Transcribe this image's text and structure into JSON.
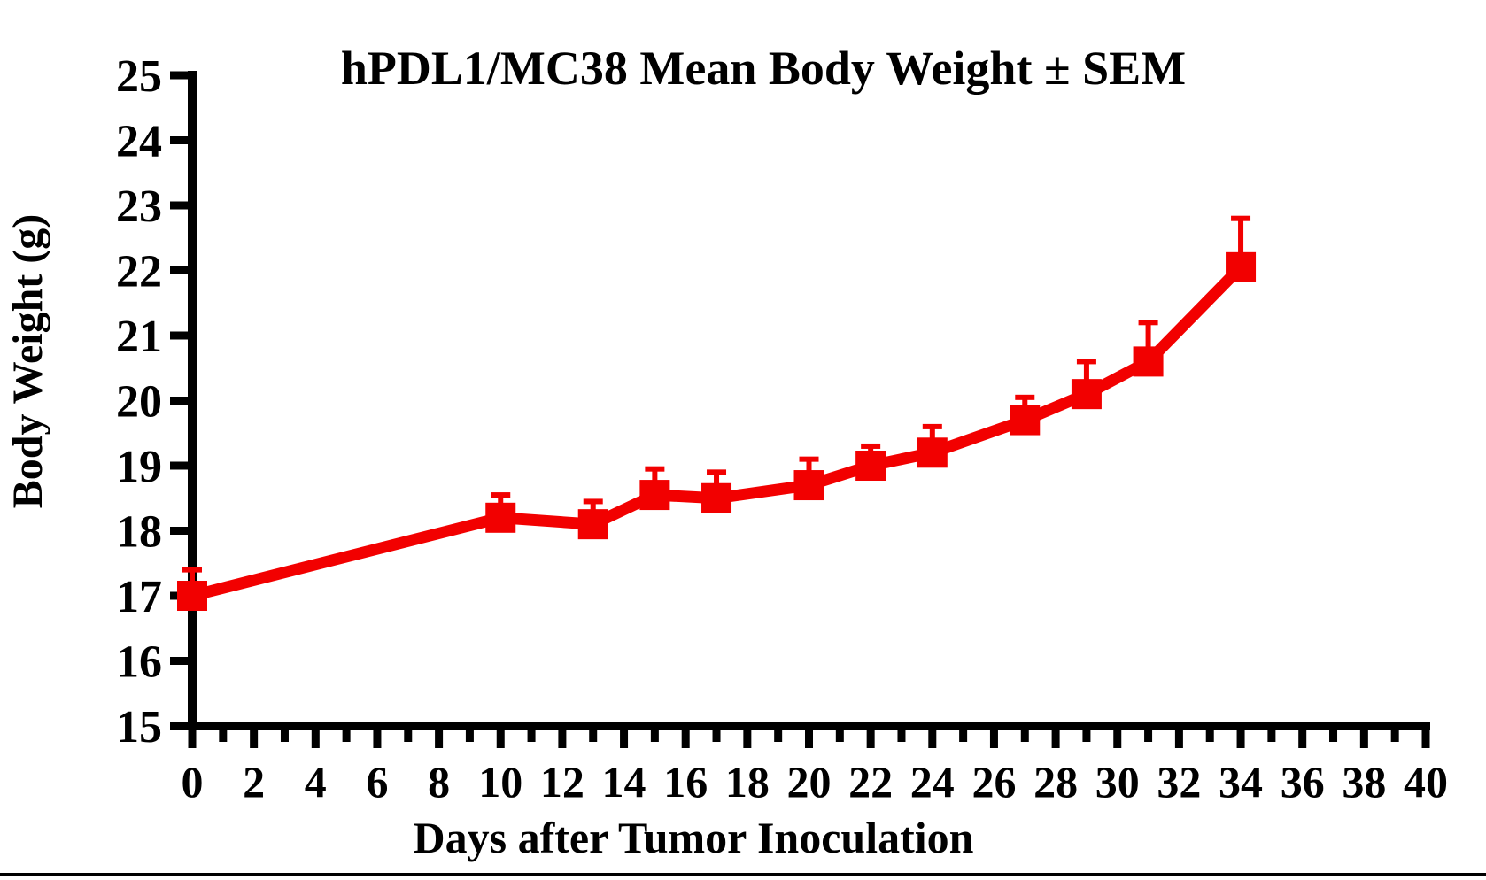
{
  "chart_data": {
    "type": "line",
    "title": "hPDL1/MC38 Mean Body Weight ± SEM",
    "xlabel": "Days after Tumor Inoculation",
    "ylabel": "Body Weight (g)",
    "xlim": [
      0,
      40
    ],
    "ylim": [
      15,
      25
    ],
    "grid": false,
    "legend": "none",
    "x_major_tick_step": 2,
    "x_minor_tick_step": 1,
    "x_tick_labels": [
      0,
      2,
      4,
      6,
      8,
      10,
      12,
      14,
      16,
      18,
      20,
      22,
      24,
      26,
      28,
      30,
      32,
      34,
      36,
      38,
      40
    ],
    "y_tick_labels": [
      15,
      16,
      17,
      18,
      19,
      20,
      21,
      22,
      23,
      24,
      25
    ],
    "axis_color": "#000000",
    "series": [
      {
        "name": "hPDL1/MC38 mean body weight",
        "color": "#F20000",
        "marker": "square",
        "error_bars": "upper-SEM",
        "points": [
          {
            "x": 0,
            "y": 17.0,
            "sem": 0.4
          },
          {
            "x": 10,
            "y": 18.2,
            "sem": 0.35
          },
          {
            "x": 13,
            "y": 18.1,
            "sem": 0.35
          },
          {
            "x": 15,
            "y": 18.55,
            "sem": 0.4
          },
          {
            "x": 17,
            "y": 18.5,
            "sem": 0.4
          },
          {
            "x": 20,
            "y": 18.7,
            "sem": 0.4
          },
          {
            "x": 22,
            "y": 19.0,
            "sem": 0.3
          },
          {
            "x": 24,
            "y": 19.2,
            "sem": 0.4
          },
          {
            "x": 27,
            "y": 19.7,
            "sem": 0.35
          },
          {
            "x": 29,
            "y": 20.1,
            "sem": 0.5
          },
          {
            "x": 31,
            "y": 20.6,
            "sem": 0.6
          },
          {
            "x": 34,
            "y": 22.05,
            "sem": 0.75
          }
        ]
      }
    ]
  }
}
